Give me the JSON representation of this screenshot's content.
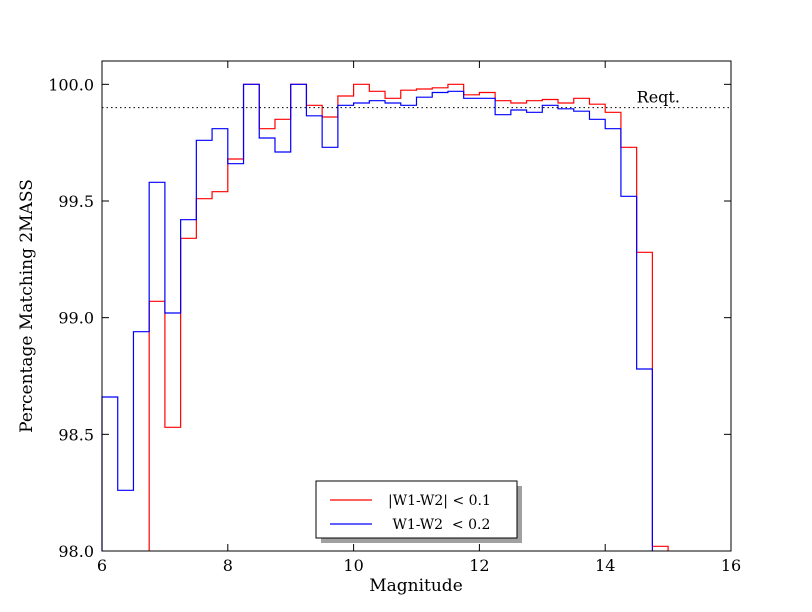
{
  "chart_data": {
    "type": "line",
    "step": true,
    "xlabel": "Magnitude",
    "ylabel": "Percentage Matching 2MASS",
    "xlim": [
      6,
      16
    ],
    "ylim": [
      98.0,
      100.1
    ],
    "xticks": [
      "6",
      "8",
      "10",
      "12",
      "14",
      "16"
    ],
    "yticks": [
      "98.0",
      "98.5",
      "99.0",
      "99.5",
      "100.0"
    ],
    "grid": false,
    "legend_position": "bottom-center",
    "reference_line": {
      "y": 99.9,
      "label": "Reqt.",
      "style": "dotted"
    },
    "series": [
      {
        "name": "|W1-W2| < 0.1",
        "color": "#ff0000",
        "bins": [
          [
            6.75,
            7.0,
            99.07
          ],
          [
            7.0,
            7.25,
            98.53
          ],
          [
            7.25,
            7.5,
            99.34
          ],
          [
            7.5,
            7.75,
            99.51
          ],
          [
            7.75,
            8.0,
            99.54
          ],
          [
            8.0,
            8.25,
            99.68
          ],
          [
            8.25,
            8.5,
            100.0
          ],
          [
            8.5,
            8.75,
            99.81
          ],
          [
            8.75,
            9.0,
            99.85
          ],
          [
            9.0,
            9.25,
            100.0
          ],
          [
            9.25,
            9.5,
            99.91
          ],
          [
            9.5,
            9.75,
            99.86
          ],
          [
            9.75,
            10.0,
            99.95
          ],
          [
            10.0,
            10.25,
            100.0
          ],
          [
            10.25,
            10.5,
            99.97
          ],
          [
            10.5,
            10.75,
            99.94
          ],
          [
            10.75,
            11.0,
            99.975
          ],
          [
            11.0,
            11.25,
            99.98
          ],
          [
            11.25,
            11.5,
            99.985
          ],
          [
            11.5,
            11.75,
            100.0
          ],
          [
            11.75,
            12.0,
            99.955
          ],
          [
            12.0,
            12.25,
            99.965
          ],
          [
            12.25,
            12.5,
            99.93
          ],
          [
            12.5,
            12.75,
            99.92
          ],
          [
            12.75,
            13.0,
            99.93
          ],
          [
            13.0,
            13.25,
            99.935
          ],
          [
            13.25,
            13.5,
            99.92
          ],
          [
            13.5,
            13.75,
            99.94
          ],
          [
            13.75,
            14.0,
            99.915
          ],
          [
            14.0,
            14.25,
            99.88
          ],
          [
            14.25,
            14.5,
            99.73
          ],
          [
            14.5,
            14.75,
            99.28
          ],
          [
            14.75,
            15.0,
            98.02
          ]
        ]
      },
      {
        "name": " W1-W2  < 0.2",
        "color": "#0000ff",
        "bins": [
          [
            6.0,
            6.25,
            98.66
          ],
          [
            6.25,
            6.5,
            98.26
          ],
          [
            6.5,
            6.75,
            98.94
          ],
          [
            6.75,
            7.0,
            99.58
          ],
          [
            7.0,
            7.25,
            99.02
          ],
          [
            7.25,
            7.5,
            99.42
          ],
          [
            7.5,
            7.75,
            99.76
          ],
          [
            7.75,
            8.0,
            99.81
          ],
          [
            8.0,
            8.25,
            99.66
          ],
          [
            8.25,
            8.5,
            100.0
          ],
          [
            8.5,
            8.75,
            99.77
          ],
          [
            8.75,
            9.0,
            99.71
          ],
          [
            9.0,
            9.25,
            100.0
          ],
          [
            9.25,
            9.5,
            99.865
          ],
          [
            9.5,
            9.75,
            99.73
          ],
          [
            9.75,
            10.0,
            99.91
          ],
          [
            10.0,
            10.25,
            99.92
          ],
          [
            10.25,
            10.5,
            99.93
          ],
          [
            10.5,
            10.75,
            99.92
          ],
          [
            10.75,
            11.0,
            99.91
          ],
          [
            11.0,
            11.25,
            99.945
          ],
          [
            11.25,
            11.5,
            99.965
          ],
          [
            11.5,
            11.75,
            99.97
          ],
          [
            11.75,
            12.0,
            99.94
          ],
          [
            12.0,
            12.25,
            99.94
          ],
          [
            12.25,
            12.5,
            99.87
          ],
          [
            12.5,
            12.75,
            99.89
          ],
          [
            12.75,
            13.0,
            99.88
          ],
          [
            13.0,
            13.25,
            99.91
          ],
          [
            13.25,
            13.5,
            99.895
          ],
          [
            13.5,
            13.75,
            99.885
          ],
          [
            13.75,
            14.0,
            99.85
          ],
          [
            14.0,
            14.25,
            99.81
          ],
          [
            14.25,
            14.5,
            99.52
          ],
          [
            14.5,
            14.75,
            98.78
          ]
        ]
      }
    ]
  }
}
